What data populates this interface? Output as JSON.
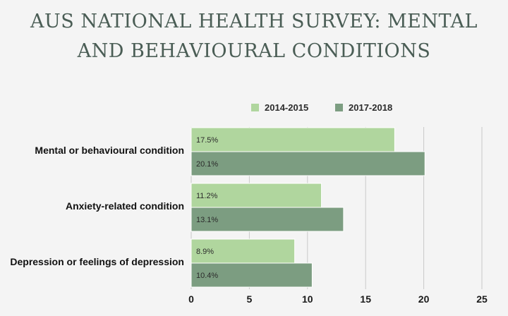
{
  "chart_data": {
    "type": "bar",
    "orientation": "horizontal",
    "title_lines": [
      "AUS NATIONAL HEALTH SURVEY: MENTAL",
      "AND BEHAVIOURAL CONDITIONS"
    ],
    "categories": [
      "Mental or behavioural condition",
      "Anxiety-related condition",
      "Depression or feelings of depression"
    ],
    "series": [
      {
        "name": "2014-2015",
        "values": [
          17.5,
          11.2,
          8.9
        ],
        "labels": [
          "17.5%",
          "11.2%",
          "8.9%"
        ],
        "color": "#b0d69e"
      },
      {
        "name": "2017-2018",
        "values": [
          20.1,
          13.1,
          10.4
        ],
        "labels": [
          "20.1%",
          "13.1%",
          "10.4%"
        ],
        "color": "#7c9d81"
      }
    ],
    "xlim": [
      0,
      25
    ],
    "xticks": [
      "0",
      "5",
      "10",
      "15",
      "20",
      "25"
    ],
    "grid": true,
    "legend_position": "top"
  }
}
